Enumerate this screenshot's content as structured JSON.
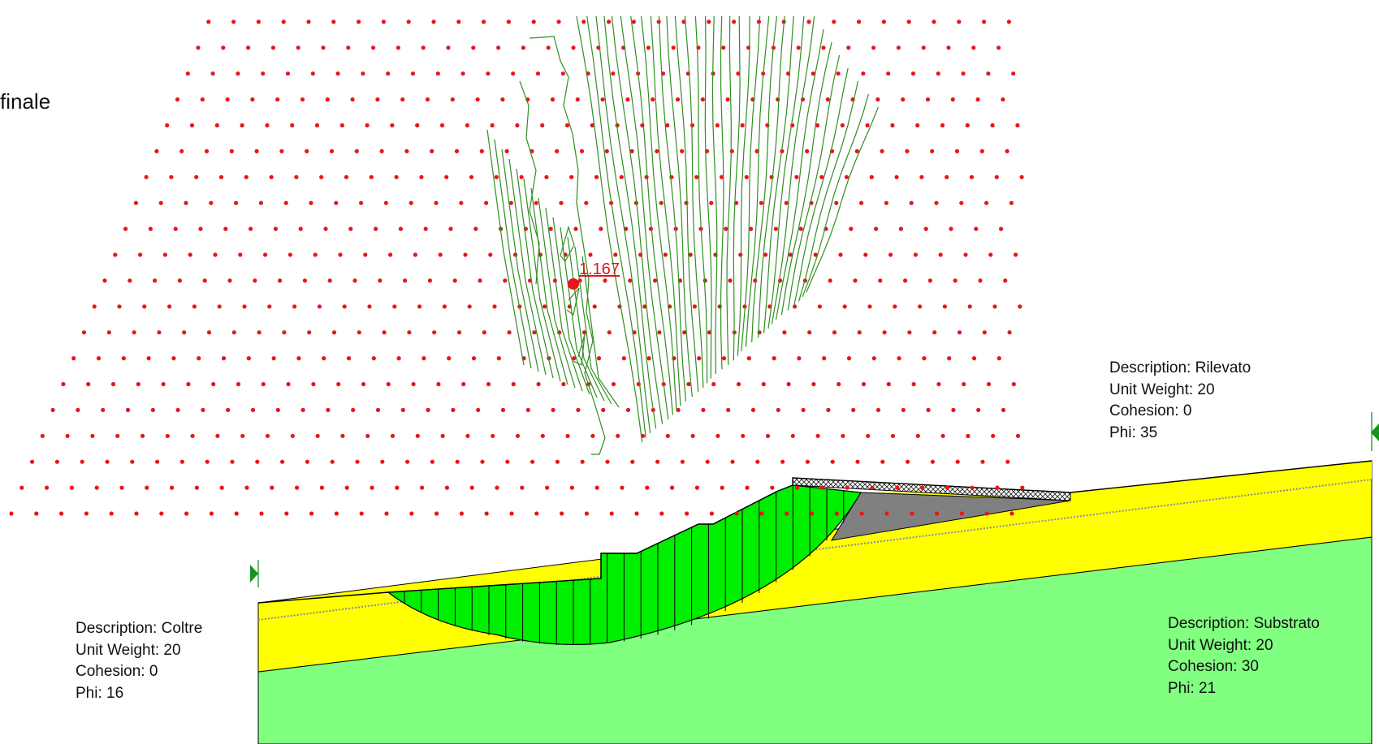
{
  "title": "finale",
  "colors": {
    "grid_dot": "#e8151b",
    "contour": "#2f8f1f",
    "rilevato": "#ffff00",
    "coltre": "#ffff00",
    "substrato": "#80ff80",
    "slip_mass": "#00ee00",
    "road_fill": "#808080",
    "critical_center": "#e8151b"
  },
  "critical_surface": {
    "fos_label": "1.167"
  },
  "materials": [
    {
      "id": "rilevato",
      "description": "Description: Rilevato",
      "unit_weight": "Unit Weight: 20",
      "cohesion": "Cohesion: 0",
      "phi": "Phi: 35"
    },
    {
      "id": "coltre",
      "description": "Description: Coltre",
      "unit_weight": "Unit Weight: 20",
      "cohesion": "Cohesion: 0",
      "phi": "Phi: 16"
    },
    {
      "id": "substrato",
      "description": "Description: Substrato",
      "unit_weight": "Unit Weight: 20",
      "cohesion": "Cohesion: 30",
      "phi": "Phi: 21"
    }
  ],
  "icons": [
    "limit-marker-left-icon",
    "limit-marker-right-icon",
    "critical-center-icon"
  ]
}
